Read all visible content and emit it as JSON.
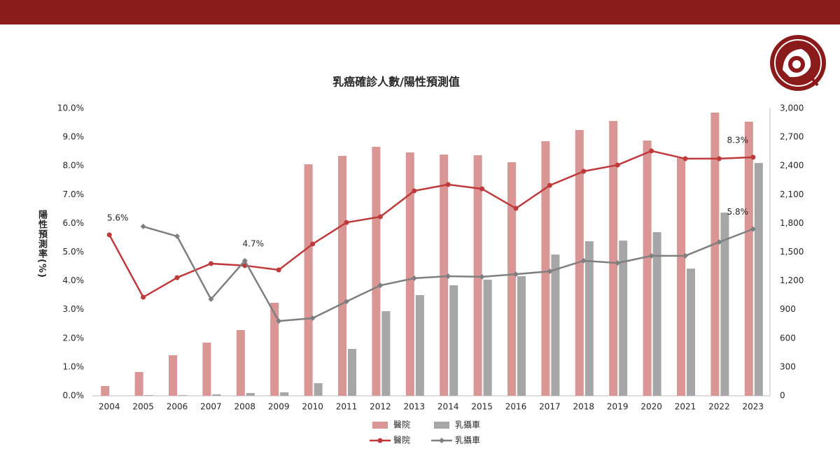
{
  "chart_data": {
    "type": "combo",
    "title": "乳癌確診人數/陽性預測值",
    "y_label": "陽性預測率(%)",
    "categories": [
      "2004",
      "2005",
      "2006",
      "2007",
      "2008",
      "2009",
      "2010",
      "2011",
      "2012",
      "2013",
      "2014",
      "2015",
      "2016",
      "2017",
      "2018",
      "2019",
      "2020",
      "2021",
      "2022",
      "2023"
    ],
    "series": [
      {
        "name": "醫院",
        "type": "bar",
        "axis": "y2",
        "color": "#D99694",
        "values": [
          102,
          248,
          423,
          555,
          686,
          971,
          2416,
          2504,
          2599,
          2540,
          2518,
          2511,
          2438,
          2657,
          2774,
          2869,
          2664,
          2482,
          2956,
          2861
        ]
      },
      {
        "name": "乳攝車",
        "type": "bar",
        "axis": "y2",
        "color": "#A6A6A6",
        "values": [
          null,
          7,
          7,
          15,
          29,
          36,
          131,
          489,
          883,
          1051,
          1153,
          1212,
          1248,
          1474,
          1613,
          1620,
          1708,
          1328,
          1912,
          2430
        ]
      },
      {
        "name": "醫院",
        "type": "line",
        "color": "#C0393B",
        "marker": "circle",
        "values": [
          5.6,
          3.43,
          4.11,
          4.6,
          4.53,
          4.38,
          5.28,
          6.03,
          6.23,
          7.13,
          7.35,
          7.2,
          6.52,
          7.32,
          7.81,
          8.03,
          8.52,
          8.25,
          8.25,
          8.3
        ],
        "value_labels": [
          "5.6%",
          null,
          null,
          null,
          null,
          null,
          null,
          null,
          null,
          null,
          null,
          null,
          null,
          null,
          null,
          null,
          null,
          null,
          null,
          "8.3%"
        ]
      },
      {
        "name": "乳攝車",
        "type": "line",
        "color": "#7F7F7F",
        "marker": "diamond",
        "values": [
          null,
          5.89,
          5.55,
          3.36,
          4.7,
          2.6,
          2.7,
          3.28,
          3.84,
          4.09,
          4.16,
          4.14,
          4.23,
          4.33,
          4.7,
          4.62,
          4.87,
          4.87,
          5.35,
          5.8
        ],
        "value_labels": [
          null,
          null,
          null,
          null,
          "4.7%",
          null,
          null,
          null,
          null,
          null,
          null,
          null,
          null,
          null,
          null,
          null,
          null,
          null,
          null,
          "5.8%"
        ]
      }
    ],
    "ylim": [
      0,
      10
    ],
    "yticks": [
      {
        "value": 0,
        "label": "0.0%"
      },
      {
        "value": 1,
        "label": "1.0%"
      },
      {
        "value": 2,
        "label": "2.0%"
      },
      {
        "value": 3,
        "label": "3.0%"
      },
      {
        "value": 4,
        "label": "4.0%"
      },
      {
        "value": 5,
        "label": "5.0%"
      },
      {
        "value": 6,
        "label": "6.0%"
      },
      {
        "value": 7,
        "label": "7.0%"
      },
      {
        "value": 8,
        "label": "8.0%"
      },
      {
        "value": 9,
        "label": "9.0%"
      },
      {
        "value": 10,
        "label": "10.0%"
      }
    ],
    "y2lim": [
      0,
      3000
    ],
    "y2ticks": [
      0,
      300,
      600,
      900,
      {
        "value": 1200,
        "label": "1,200"
      },
      {
        "value": 1500,
        "label": "1,500"
      },
      {
        "value": 1800,
        "label": "1,800"
      },
      {
        "value": 2100,
        "label": "2,100"
      },
      {
        "value": 2400,
        "label": "2,400"
      },
      {
        "value": 2700,
        "label": "2,700"
      },
      {
        "value": 3000,
        "label": "3,000"
      }
    ],
    "grid": false
  }
}
